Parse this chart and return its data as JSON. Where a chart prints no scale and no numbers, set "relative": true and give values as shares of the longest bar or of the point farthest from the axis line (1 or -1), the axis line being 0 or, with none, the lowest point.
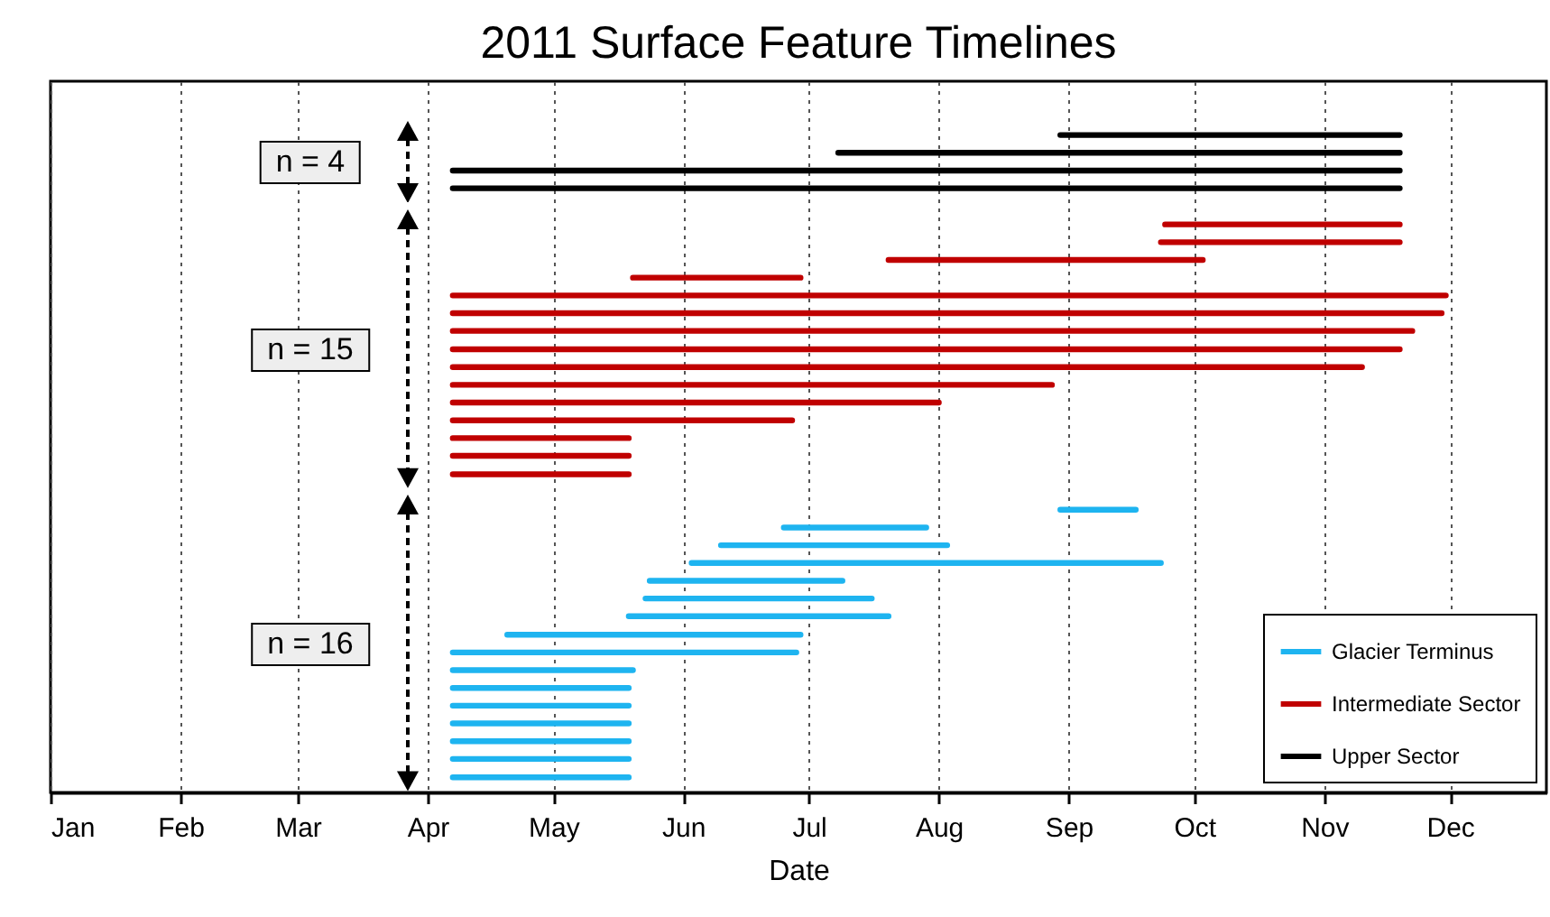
{
  "chart_data": {
    "type": "line",
    "title": "2011 Surface Feature Timelines",
    "xlabel": "Date",
    "relative": true,
    "xlim": [
      "2011-01-01",
      "2011-12-24"
    ],
    "xticks": [
      {
        "value": "2011-01-01",
        "label": "Jan"
      },
      {
        "value": "2011-02-01",
        "label": "Feb"
      },
      {
        "value": "2011-03-01",
        "label": "Mar"
      },
      {
        "value": "2011-04-01",
        "label": "Apr"
      },
      {
        "value": "2011-05-01",
        "label": "May"
      },
      {
        "value": "2011-06-01",
        "label": "Jun"
      },
      {
        "value": "2011-07-01",
        "label": "Jul"
      },
      {
        "value": "2011-08-01",
        "label": "Aug"
      },
      {
        "value": "2011-09-01",
        "label": "Sep"
      },
      {
        "value": "2011-10-01",
        "label": "Oct"
      },
      {
        "value": "2011-11-01",
        "label": "Nov"
      },
      {
        "value": "2011-12-01",
        "label": "Dec"
      }
    ],
    "series": [
      {
        "name": "Glacier Terminus",
        "color": "#1eb4f0",
        "x": [
          "2011-08-30",
          "2011-09-17",
          null,
          "2011-06-25",
          "2011-07-29",
          null,
          "2011-06-10",
          "2011-08-03",
          null,
          "2011-06-03",
          "2011-09-23",
          null,
          "2011-05-24",
          "2011-07-09",
          null,
          "2011-04-07",
          "2011-05-19"
        ],
        "values": [
          0.43,
          0.43,
          null,
          0.403,
          0.403,
          null,
          0.376,
          0.376,
          null,
          0.349,
          0.349,
          null,
          0.322,
          0.322,
          null,
          0.159,
          0.159
        ]
      },
      {
        "color": "#1eb4f0",
        "x": [
          "2011-05-23",
          "2011-07-16",
          null,
          "2011-04-07",
          "2011-05-19"
        ],
        "values": [
          0.295,
          0.295,
          null,
          0.132,
          0.132
        ]
      },
      {
        "color": "#1eb4f0",
        "x": [
          "2011-05-19",
          "2011-07-20",
          null,
          "2011-04-07",
          "2011-05-19"
        ],
        "values": [
          0.268,
          0.268,
          null,
          0.105,
          0.105
        ]
      },
      {
        "color": "#1eb4f0",
        "x": [
          "2011-04-20",
          "2011-06-29",
          null,
          "2011-04-07",
          "2011-05-19"
        ],
        "values": [
          0.24,
          0.24,
          null,
          0.078,
          0.078
        ]
      },
      {
        "color": "#1eb4f0",
        "x": [
          "2011-04-07",
          "2011-06-28",
          null,
          "2011-04-07",
          "2011-05-19"
        ],
        "values": [
          0.213,
          0.213,
          null,
          0.051,
          0.051
        ]
      },
      {
        "color": "#1eb4f0",
        "x": [
          "2011-04-07",
          "2011-05-20",
          null,
          "2011-04-07",
          "2011-05-19"
        ],
        "values": [
          0.186,
          0.186,
          null,
          0.023,
          0.023
        ]
      },
      {
        "name": "Intermediate Sector",
        "color": "#c00000",
        "x": [
          "2011-09-24",
          "2011-11-19",
          null,
          "2011-09-23",
          "2011-11-19",
          null,
          "2011-07-20",
          "2011-10-03",
          null,
          "2011-05-20",
          "2011-06-29",
          null,
          "2011-04-07",
          "2011-11-30",
          null,
          "2011-04-07",
          "2011-11-29",
          null,
          "2011-04-07",
          "2011-11-22",
          null,
          "2011-04-07",
          "2011-11-19",
          null,
          "2011-04-07",
          "2011-11-10",
          null,
          "2011-04-07",
          "2011-08-28",
          null,
          "2011-04-07",
          "2011-05-19"
        ],
        "values": [
          0.864,
          0.864,
          null,
          0.837,
          0.837,
          null,
          0.81,
          0.81,
          null,
          0.783,
          0.783,
          null,
          0.756,
          0.756,
          null,
          0.729,
          0.729,
          null,
          0.702,
          0.702,
          null,
          0.674,
          0.674,
          null,
          0.647,
          0.647,
          null,
          0.62,
          0.62,
          null,
          0.539,
          0.539
        ]
      },
      {
        "color": "#c00000",
        "x": [
          "2011-04-07",
          "2011-08-01",
          null,
          "2011-04-07",
          "2011-05-19"
        ],
        "values": [
          0.593,
          0.593,
          null,
          0.484,
          0.484
        ]
      },
      {
        "color": "#c00000",
        "x": [
          "2011-04-07",
          "2011-06-27",
          null,
          "2011-04-07",
          "2011-05-19"
        ],
        "values": [
          0.566,
          0.566,
          null,
          0.512,
          0.512
        ]
      },
      {
        "name": "Upper Sector",
        "color": "#000000",
        "x": [
          "2011-08-30",
          "2011-11-19",
          null,
          "2011-04-07",
          "2011-11-19"
        ],
        "values": [
          1,
          1,
          null,
          0.946,
          0.946
        ]
      },
      {
        "color": "#000000",
        "x": [
          "2011-07-08",
          "2011-11-19",
          null,
          "2011-04-07",
          "2011-11-19"
        ],
        "values": [
          0.973,
          0.973,
          null,
          0.919,
          0.919
        ]
      }
    ],
    "annotations": [
      "n = 4",
      "n = 15",
      "n = 16"
    ],
    "grid": "x",
    "legend": "bottom right",
    "line_style": "solid"
  }
}
